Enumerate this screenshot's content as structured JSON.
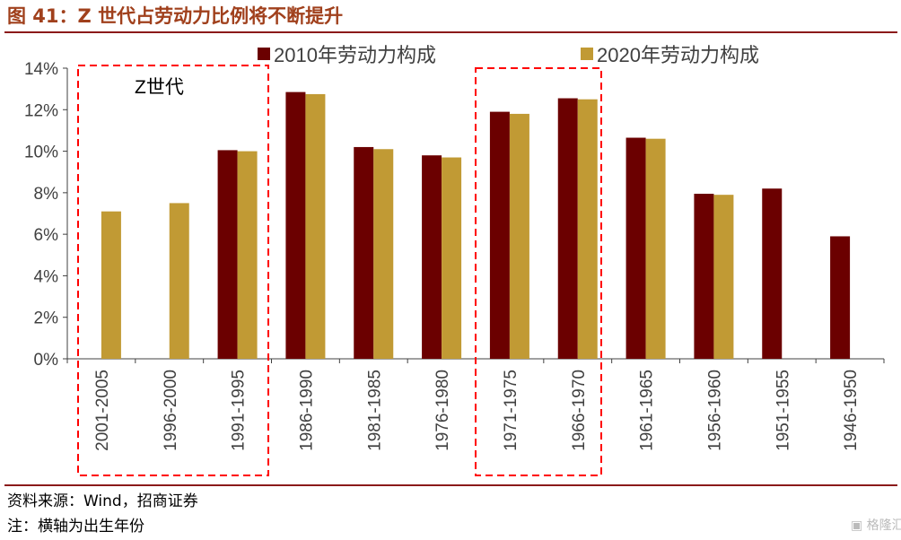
{
  "title": "图 41：Z 世代占劳动力比例将不断提升",
  "source": "资料来源：Wind，招商证券",
  "note": "注：横轴为出生年份",
  "watermark": "格隆汇",
  "chart_data": {
    "type": "bar",
    "title": "",
    "xlabel": "",
    "ylabel": "",
    "ylim": [
      0,
      14
    ],
    "yticks": [
      "0%",
      "2%",
      "4%",
      "6%",
      "8%",
      "10%",
      "12%",
      "14%"
    ],
    "grid": false,
    "legend_position": "top",
    "categories": [
      "2001-2005",
      "1996-2000",
      "1991-1995",
      "1986-1990",
      "1981-1985",
      "1976-1980",
      "1971-1975",
      "1966-1970",
      "1961-1965",
      "1956-1960",
      "1951-1955",
      "1946-1950"
    ],
    "series": [
      {
        "name": "2010年劳动力构成",
        "color": "#6B0000",
        "values": [
          null,
          null,
          10.05,
          12.85,
          10.2,
          9.8,
          11.9,
          12.55,
          10.65,
          7.95,
          8.2,
          5.9
        ]
      },
      {
        "name": "2020年劳动力构成",
        "color": "#C19A34",
        "values": [
          7.1,
          7.5,
          10.0,
          12.75,
          10.1,
          9.7,
          11.8,
          12.5,
          10.6,
          7.9,
          null,
          null
        ]
      }
    ],
    "annotations": [
      {
        "text": "Z世代",
        "highlight": [
          "2001-2005",
          "1996-2000",
          "1991-1995"
        ]
      },
      {
        "text": "",
        "highlight": [
          "1971-1975",
          "1966-1970"
        ]
      }
    ],
    "highlight_color": "#FF0000"
  }
}
